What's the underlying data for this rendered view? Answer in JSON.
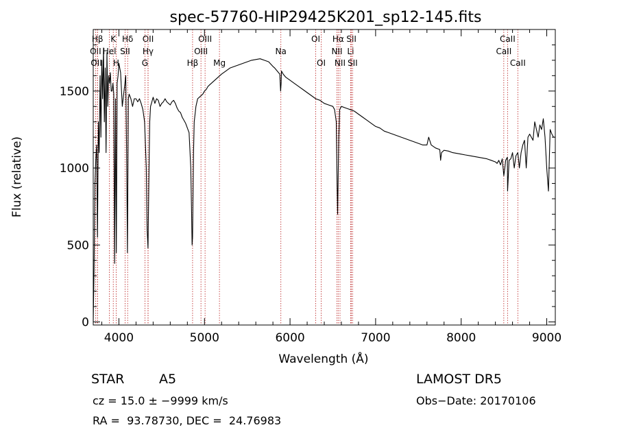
{
  "chart_data": {
    "type": "line",
    "title": "spec-57760-HIP29425K201_sp12-145.fits",
    "xlabel": "Wavelength (Å)",
    "ylabel": "Flux (relative)",
    "xlim": [
      3700,
      9100
    ],
    "ylim": [
      -20,
      1900
    ],
    "xticks": [
      4000,
      5000,
      6000,
      7000,
      8000,
      9000
    ],
    "yticks": [
      0,
      500,
      1000,
      1500
    ],
    "grid": false,
    "legend": "none",
    "series": [
      {
        "color": "#000000",
        "x": [
          3700,
          3710,
          3720,
          3730,
          3740,
          3750,
          3760,
          3770,
          3780,
          3790,
          3800,
          3810,
          3820,
          3830,
          3840,
          3850,
          3860,
          3870,
          3880,
          3890,
          3900,
          3910,
          3920,
          3930,
          3940,
          3950,
          3960,
          3970,
          3980,
          3990,
          4000,
          4020,
          4040,
          4060,
          4070,
          4080,
          4090,
          4100,
          4110,
          4120,
          4140,
          4160,
          4180,
          4200,
          4220,
          4240,
          4260,
          4280,
          4300,
          4320,
          4330,
          4340,
          4350,
          4360,
          4370,
          4380,
          4400,
          4420,
          4440,
          4460,
          4480,
          4500,
          4520,
          4540,
          4560,
          4580,
          4600,
          4620,
          4640,
          4660,
          4680,
          4700,
          4720,
          4740,
          4760,
          4780,
          4800,
          4820,
          4840,
          4850,
          4855,
          4861,
          4866,
          4872,
          4880,
          4900,
          4920,
          4940,
          4960,
          4980,
          5000,
          5020,
          5040,
          5060,
          5080,
          5100,
          5120,
          5140,
          5160,
          5180,
          5200,
          5250,
          5300,
          5350,
          5400,
          5450,
          5500,
          5550,
          5600,
          5650,
          5700,
          5750,
          5800,
          5820,
          5850,
          5880,
          5890,
          5896,
          5900,
          5920,
          5950,
          6000,
          6050,
          6100,
          6150,
          6200,
          6250,
          6300,
          6350,
          6400,
          6450,
          6500,
          6520,
          6540,
          6550,
          6556,
          6563,
          6570,
          6580,
          6600,
          6650,
          6700,
          6750,
          6800,
          6850,
          6900,
          6950,
          7000,
          7050,
          7100,
          7150,
          7200,
          7250,
          7300,
          7350,
          7400,
          7450,
          7500,
          7550,
          7600,
          7620,
          7650,
          7700,
          7750,
          7760,
          7770,
          7800,
          7850,
          7900,
          7950,
          8000,
          8050,
          8100,
          8150,
          8200,
          8250,
          8300,
          8350,
          8400,
          8420,
          8440,
          8460,
          8480,
          8498,
          8510,
          8520,
          8540,
          8542,
          8560,
          8580,
          8600,
          8620,
          8640,
          8662,
          8680,
          8700,
          8720,
          8740,
          8760,
          8780,
          8800,
          8820,
          8840,
          8860,
          8880,
          8900,
          8920,
          8940,
          8960,
          8980,
          9000,
          9020,
          9040,
          9060,
          9080,
          9100
        ],
        "y": [
          0,
          350,
          900,
          1050,
          1150,
          550,
          1300,
          1100,
          1600,
          1200,
          1700,
          1450,
          1780,
          1300,
          1650,
          1100,
          1750,
          1400,
          1600,
          1550,
          1620,
          1500,
          1500,
          1550,
          1480,
          380,
          1450,
          450,
          1550,
          1600,
          1680,
          1620,
          1400,
          1500,
          1550,
          1600,
          1100,
          450,
          1450,
          1480,
          1450,
          1400,
          1450,
          1450,
          1430,
          1450,
          1420,
          1380,
          1300,
          1000,
          600,
          480,
          900,
          1300,
          1400,
          1420,
          1460,
          1420,
          1450,
          1440,
          1400,
          1420,
          1430,
          1450,
          1430,
          1420,
          1410,
          1430,
          1440,
          1420,
          1390,
          1370,
          1360,
          1330,
          1310,
          1290,
          1260,
          1230,
          1000,
          700,
          500,
          550,
          800,
          1100,
          1300,
          1400,
          1450,
          1460,
          1470,
          1480,
          1500,
          1510,
          1530,
          1540,
          1550,
          1560,
          1570,
          1580,
          1590,
          1600,
          1610,
          1630,
          1650,
          1660,
          1670,
          1680,
          1690,
          1700,
          1705,
          1710,
          1700,
          1690,
          1660,
          1650,
          1630,
          1610,
          1500,
          1550,
          1630,
          1610,
          1590,
          1570,
          1550,
          1530,
          1510,
          1490,
          1470,
          1450,
          1440,
          1420,
          1410,
          1400,
          1380,
          1300,
          900,
          700,
          950,
          1200,
          1380,
          1400,
          1390,
          1380,
          1370,
          1350,
          1330,
          1310,
          1290,
          1270,
          1260,
          1240,
          1230,
          1220,
          1210,
          1200,
          1190,
          1180,
          1170,
          1160,
          1150,
          1150,
          1200,
          1150,
          1130,
          1120,
          1050,
          1100,
          1115,
          1110,
          1100,
          1095,
          1090,
          1085,
          1080,
          1075,
          1070,
          1065,
          1060,
          1050,
          1040,
          1030,
          1050,
          1020,
          1060,
          950,
          1000,
          1050,
          1070,
          850,
          1050,
          1060,
          1100,
          1000,
          1080,
          1100,
          1000,
          1100,
          1150,
          1180,
          1000,
          1200,
          1220,
          1200,
          1180,
          1300,
          1250,
          1200,
          1280,
          1250,
          1320,
          1200,
          1000,
          850,
          1250,
          1220,
          1200,
          1200
        ]
      }
    ],
    "spectral_lines": [
      {
        "label": "Hβ",
        "wl": 3750,
        "row": 0
      },
      {
        "label": "K",
        "wl": 3934,
        "row": 0
      },
      {
        "label": "Hδ",
        "wl": 4102,
        "row": 0
      },
      {
        "label": "OII",
        "wl": 4341,
        "row": 0
      },
      {
        "label": "OIII",
        "wl": 5007,
        "row": 0
      },
      {
        "label": "OI",
        "wl": 6300,
        "row": 0
      },
      {
        "label": "Hα",
        "wl": 6563,
        "row": 0
      },
      {
        "label": "SII",
        "wl": 6717,
        "row": 0
      },
      {
        "label": "CaII",
        "wl": 8542,
        "row": 0
      },
      {
        "label": "OII",
        "wl": 3727,
        "row": 1
      },
      {
        "label": "Hel",
        "wl": 3889,
        "row": 1
      },
      {
        "label": "SII",
        "wl": 4072,
        "row": 1
      },
      {
        "label": "Hγ",
        "wl": 4340,
        "row": 1
      },
      {
        "label": "OIII",
        "wl": 4959,
        "row": 1
      },
      {
        "label": "Na",
        "wl": 5893,
        "row": 1
      },
      {
        "label": "NII",
        "wl": 6548,
        "row": 1
      },
      {
        "label": "Li",
        "wl": 6708,
        "row": 1
      },
      {
        "label": "CaII",
        "wl": 8498,
        "row": 1
      },
      {
        "label": "OIII",
        "wl": 3750,
        "row": 2
      },
      {
        "label": "H",
        "wl": 3968,
        "row": 2
      },
      {
        "label": "G",
        "wl": 4304,
        "row": 2
      },
      {
        "label": "Hβ",
        "wl": 4861,
        "row": 2
      },
      {
        "label": "Mg",
        "wl": 5175,
        "row": 2
      },
      {
        "label": "OI",
        "wl": 6364,
        "row": 2
      },
      {
        "label": "NII",
        "wl": 6584,
        "row": 2
      },
      {
        "label": "SII",
        "wl": 6731,
        "row": 2
      },
      {
        "label": "CaII",
        "wl": 8662,
        "row": 2
      }
    ]
  },
  "info": {
    "object_class": "STAR",
    "subclass": "A5",
    "survey": "LAMOST DR5",
    "cz": "cz = 15.0 ± −9999 km/s",
    "obs_date": "Obs−Date: 20170106",
    "radec": "RA =  93.78730, DEC =  24.76983"
  }
}
